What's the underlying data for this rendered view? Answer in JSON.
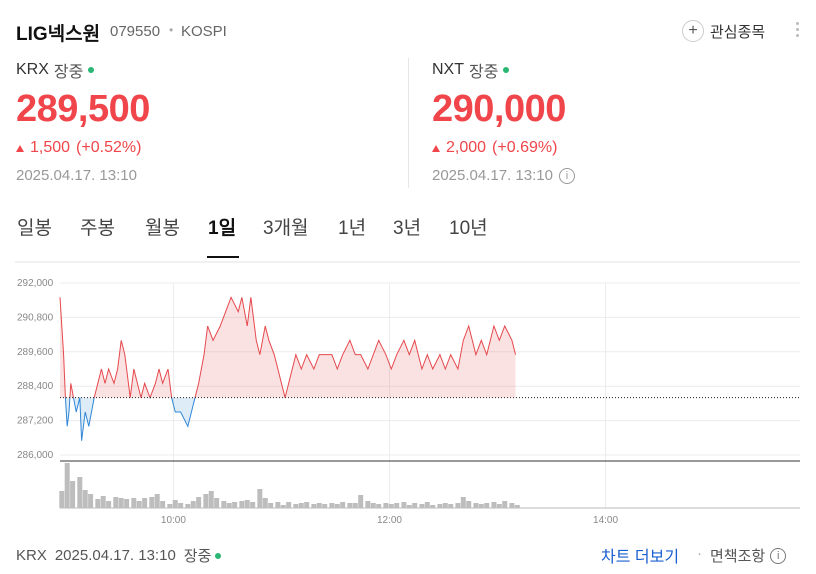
{
  "header": {
    "name": "LIG넥스원",
    "code": "079550",
    "separator": "•",
    "market": "KOSPI",
    "watch_button": "관심종목"
  },
  "quotes": [
    {
      "exchange": "KRX",
      "status": "장중",
      "price": "289,500",
      "change": "1,500",
      "change_pct": "(+0.52%)",
      "time": "2025.04.17. 13:10"
    },
    {
      "exchange": "NXT",
      "status": "장중",
      "price": "290,000",
      "change": "2,000",
      "change_pct": "(+0.69%)",
      "time": "2025.04.17. 13:10"
    }
  ],
  "tabs": {
    "items": [
      "일봉",
      "주봉",
      "월봉",
      "1일",
      "3개월",
      "1년",
      "3년",
      "10년"
    ],
    "selected": 3
  },
  "chart_data": {
    "type": "line",
    "x": [
      537,
      538,
      539,
      540,
      541,
      542,
      543,
      546,
      548,
      549,
      551,
      553,
      556,
      558,
      560,
      562,
      564,
      567,
      569,
      571,
      573,
      576,
      578,
      580,
      582,
      584,
      587,
      590,
      592,
      594,
      597,
      599,
      601,
      604,
      608,
      610,
      612,
      614,
      617,
      619,
      622,
      626,
      629,
      632,
      636,
      638,
      641,
      643,
      646,
      648,
      651,
      653,
      656,
      658,
      660,
      662,
      664,
      668,
      671,
      674,
      678,
      681,
      684,
      688,
      691,
      694,
      698,
      701,
      704,
      708,
      711,
      714,
      718,
      721,
      724,
      728,
      731,
      734,
      738,
      741,
      744,
      748,
      751,
      754,
      758,
      761,
      764,
      768,
      771,
      774,
      778,
      781,
      784,
      788,
      790
    ],
    "values": [
      291500,
      290500,
      289500,
      288000,
      287000,
      287500,
      288500,
      287500,
      288000,
      286500,
      287500,
      287000,
      288000,
      288500,
      289000,
      288500,
      289000,
      288500,
      289000,
      290000,
      289500,
      288000,
      289000,
      288500,
      288000,
      288500,
      288000,
      288500,
      289000,
      288500,
      289000,
      288000,
      287500,
      287500,
      287000,
      287500,
      288000,
      288500,
      289500,
      290500,
      290000,
      290500,
      291000,
      291500,
      291000,
      291500,
      290500,
      291500,
      290000,
      289500,
      290500,
      290000,
      289500,
      289000,
      288500,
      288000,
      288500,
      289500,
      289000,
      289500,
      289000,
      289500,
      289500,
      289500,
      289000,
      289500,
      290000,
      289500,
      289500,
      289000,
      289500,
      290000,
      289500,
      289000,
      289500,
      290000,
      289500,
      290000,
      289000,
      289500,
      289000,
      289500,
      289000,
      289500,
      289000,
      290000,
      290500,
      289500,
      290000,
      289500,
      290500,
      290000,
      290500,
      290000,
      289500
    ],
    "baseline": 288000,
    "up_color": "#e5484d",
    "down_color": "#2f86d6",
    "xlim": [
      537,
      948
    ],
    "xticks": [
      {
        "value": 600,
        "label": "10:00"
      },
      {
        "value": 720,
        "label": "12:00"
      },
      {
        "value": 840,
        "label": "14:00"
      }
    ],
    "ylim": [
      286000,
      292000
    ],
    "yticks": [
      {
        "value": 286000,
        "label": "286,000"
      },
      {
        "value": 287200,
        "label": "287,200"
      },
      {
        "value": 288400,
        "label": "288,400"
      },
      {
        "value": 289600,
        "label": "289,600"
      },
      {
        "value": 290800,
        "label": "290,800"
      },
      {
        "value": 292000,
        "label": "292,000"
      }
    ],
    "grid": true,
    "volume": {
      "color": "#bdbdbd",
      "ylim": [
        0,
        46
      ],
      "x": [
        538,
        541,
        544,
        548,
        551,
        554,
        558,
        561,
        564,
        568,
        571,
        574,
        578,
        581,
        584,
        588,
        591,
        594,
        598,
        601,
        604,
        608,
        611,
        614,
        618,
        621,
        624,
        628,
        631,
        634,
        638,
        641,
        644,
        648,
        651,
        654,
        658,
        661,
        664,
        668,
        671,
        674,
        678,
        681,
        684,
        688,
        691,
        694,
        698,
        701,
        704,
        708,
        711,
        714,
        718,
        721,
        724,
        728,
        731,
        734,
        738,
        741,
        744,
        748,
        751,
        754,
        758,
        761,
        764,
        768,
        771,
        774,
        778,
        781,
        784,
        788,
        791
      ],
      "values": [
        17,
        45,
        27,
        31,
        18,
        14,
        9,
        12,
        7,
        11,
        10,
        9,
        10,
        7,
        10,
        11,
        14,
        7,
        4,
        8,
        5,
        4,
        7,
        11,
        14,
        17,
        10,
        7,
        5,
        6,
        7,
        8,
        6,
        19,
        10,
        5,
        6,
        3,
        6,
        4,
        5,
        6,
        4,
        5,
        4,
        5,
        4,
        6,
        5,
        5,
        13,
        7,
        5,
        4,
        5,
        4,
        5,
        6,
        3,
        5,
        4,
        6,
        3,
        4,
        5,
        4,
        5,
        11,
        7,
        5,
        4,
        5,
        6,
        4,
        7,
        5,
        3
      ]
    }
  },
  "footer": {
    "exchange": "KRX",
    "time": "2025.04.17. 13:10",
    "status": "장중",
    "more": "차트 더보기",
    "separator": "·",
    "disclaimer": "면책조항"
  }
}
